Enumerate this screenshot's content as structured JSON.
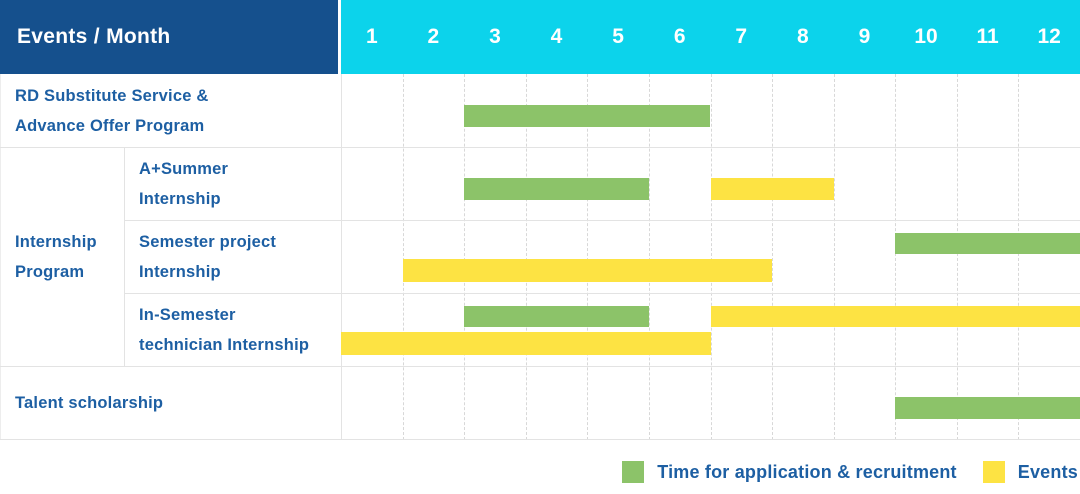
{
  "title": "Events / Month",
  "months": [
    "1",
    "2",
    "3",
    "4",
    "5",
    "6",
    "7",
    "8",
    "9",
    "10",
    "11",
    "12"
  ],
  "colors": {
    "header_bg": "#15508d",
    "months_bg": "#0cd3eb",
    "label_text": "#1d5fa3",
    "green": "#8cc369",
    "yellow": "#fde343",
    "grid": "#e3e3e3"
  },
  "group": {
    "label_lines": [
      "Internship",
      "Program"
    ]
  },
  "rows": [
    {
      "id": "rd-substitute-service",
      "in_group": false,
      "label_lines": [
        "RD Substitute Service &",
        "Advance Offer Program"
      ],
      "bars": [
        {
          "color": "green",
          "start_month": 3,
          "end_month": 6,
          "lane": "single"
        }
      ]
    },
    {
      "id": "a-plus-summer-internship",
      "in_group": true,
      "label_lines": [
        "A+Summer",
        "Internship"
      ],
      "bars": [
        {
          "color": "green",
          "start_month": 3,
          "end_month": 5,
          "lane": "single"
        },
        {
          "color": "yellow",
          "start_month": 7,
          "end_month": 8,
          "lane": "single"
        }
      ]
    },
    {
      "id": "semester-project-internship",
      "in_group": true,
      "label_lines": [
        "Semester project",
        "Internship"
      ],
      "bars": [
        {
          "color": "green",
          "start_month": 10,
          "end_month": 12,
          "lane": "upper"
        },
        {
          "color": "yellow",
          "start_month": 2,
          "end_month": 7,
          "lane": "lower"
        }
      ]
    },
    {
      "id": "in-semester-technician-internship",
      "in_group": true,
      "label_lines": [
        "In-Semester",
        "technician Internship"
      ],
      "bars": [
        {
          "color": "green",
          "start_month": 3,
          "end_month": 5,
          "lane": "upper"
        },
        {
          "color": "yellow",
          "start_month": 7,
          "end_month": 12,
          "lane": "upper"
        },
        {
          "color": "yellow",
          "start_month": 1,
          "end_month": 6,
          "lane": "lower"
        }
      ]
    },
    {
      "id": "talent-scholarship",
      "in_group": false,
      "label_lines": [
        "Talent scholarship"
      ],
      "bars": [
        {
          "color": "green",
          "start_month": 10,
          "end_month": 12,
          "lane": "single"
        }
      ]
    }
  ],
  "legend": [
    {
      "swatch": "green",
      "label": "Time for application & recruitment"
    },
    {
      "swatch": "yellow",
      "label": "Events"
    }
  ],
  "chart_data": {
    "type": "table",
    "subtype": "gantt-timeline",
    "title": "Events / Month",
    "x_axis": {
      "label": "Month",
      "ticks": [
        1,
        2,
        3,
        4,
        5,
        6,
        7,
        8,
        9,
        10,
        11,
        12
      ],
      "range": [
        1,
        12
      ]
    },
    "grid": true,
    "legend_position": "bottom-right",
    "series_legend": [
      {
        "name": "Time for application & recruitment",
        "color": "#8cc369"
      },
      {
        "name": "Events",
        "color": "#fde343"
      }
    ],
    "rows": [
      {
        "category": "RD Substitute Service & Advance Offer Program",
        "group": null,
        "segments": [
          {
            "series": "Time for application & recruitment",
            "start_month": 3,
            "end_month": 6
          }
        ]
      },
      {
        "category": "A+Summer Internship",
        "group": "Internship Program",
        "segments": [
          {
            "series": "Time for application & recruitment",
            "start_month": 3,
            "end_month": 5
          },
          {
            "series": "Events",
            "start_month": 7,
            "end_month": 8
          }
        ]
      },
      {
        "category": "Semester project Internship",
        "group": "Internship Program",
        "segments": [
          {
            "series": "Time for application & recruitment",
            "start_month": 10,
            "end_month": 12
          },
          {
            "series": "Events",
            "start_month": 2,
            "end_month": 7
          }
        ]
      },
      {
        "category": "In-Semester technician Internship",
        "group": "Internship Program",
        "segments": [
          {
            "series": "Time for application & recruitment",
            "start_month": 3,
            "end_month": 5
          },
          {
            "series": "Events",
            "start_month": 7,
            "end_month": 12
          },
          {
            "series": "Events",
            "start_month": 1,
            "end_month": 6
          }
        ]
      },
      {
        "category": "Talent scholarship",
        "group": null,
        "segments": [
          {
            "series": "Time for application & recruitment",
            "start_month": 10,
            "end_month": 12
          }
        ]
      }
    ]
  }
}
